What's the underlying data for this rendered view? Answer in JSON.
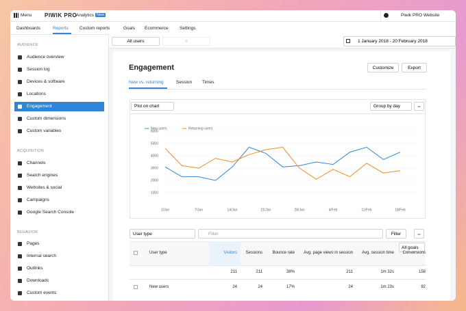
{
  "topbar": {
    "menu": "Menu",
    "logo": "PIWIK PRO",
    "product": "Analytics",
    "badge": "New",
    "site": "Piwik PRO Website"
  },
  "nav": [
    "Dashboards",
    "Reports",
    "Custom reports",
    "Goals",
    "Ecommerce",
    "Settings"
  ],
  "sidebar": [
    {
      "heading": "AUDIENCE",
      "items": [
        "Audience overview",
        "Session log",
        "Devices & software",
        "Locations",
        "Engagement",
        "Custom dimensions",
        "Custom variables"
      ]
    },
    {
      "heading": "ACQUISITION",
      "items": [
        "Channels",
        "Search engines",
        "Websites & social",
        "Campaigns",
        "Google Search Console"
      ]
    },
    {
      "heading": "BEHAVIOR",
      "items": [
        "Pages",
        "Internal search",
        "Outlinks",
        "Downloads",
        "Custom events"
      ]
    }
  ],
  "filters": {
    "segment": "All users",
    "add": "+",
    "date": "1 January 2018 - 20 February 2018"
  },
  "page": {
    "title": "Engagement",
    "buttons": [
      "Customize",
      "Export"
    ],
    "tabs": [
      "New vs. returning",
      "Session",
      "Times"
    ],
    "plot": "Plot on chart",
    "group": "Group by day",
    "more": "•••"
  },
  "chart_data": {
    "type": "line",
    "categories": [
      "1/Jan",
      null,
      "7/Jan",
      null,
      "14/Jan",
      null,
      "21/Jan",
      null,
      "28/Jan",
      null,
      "4/Feb",
      null,
      "11/Feb",
      null,
      "18/Feb"
    ],
    "series": [
      {
        "name": "New users",
        "color": "#2f86d6",
        "values": [
          3100,
          2300,
          2300,
          2000,
          3100,
          4700,
          4200,
          3100,
          3200,
          3500,
          3300,
          4300,
          4700,
          3700,
          4300
        ]
      },
      {
        "name": "Returning users",
        "color": "#f08a24",
        "values": [
          4600,
          3200,
          3000,
          3800,
          3500,
          4100,
          4500,
          4700,
          3000,
          2100,
          2900,
          2300,
          3400,
          2600,
          2800
        ]
      }
    ],
    "ylim": [
      0,
      6000
    ],
    "yticks": [
      1000,
      2000,
      3000,
      4000,
      5000,
      6000
    ],
    "grid": true
  },
  "table": {
    "controls": {
      "dimension": "User type",
      "filter_placeholder": "Filter",
      "filter_button": "Filter",
      "goals": "All goals"
    },
    "header": [
      "User type",
      "Visitors",
      "Sessions",
      "Bounce rate",
      "Avg. page views in session",
      "Avg. session time",
      "Conversions"
    ],
    "totals": [
      "211",
      "211",
      "38%",
      "211",
      "1m 32s",
      "158"
    ],
    "rows": [
      {
        "label": "New users",
        "cells": [
          "24",
          "24",
          "17%",
          "24",
          "1m 23s",
          "92"
        ]
      }
    ]
  }
}
